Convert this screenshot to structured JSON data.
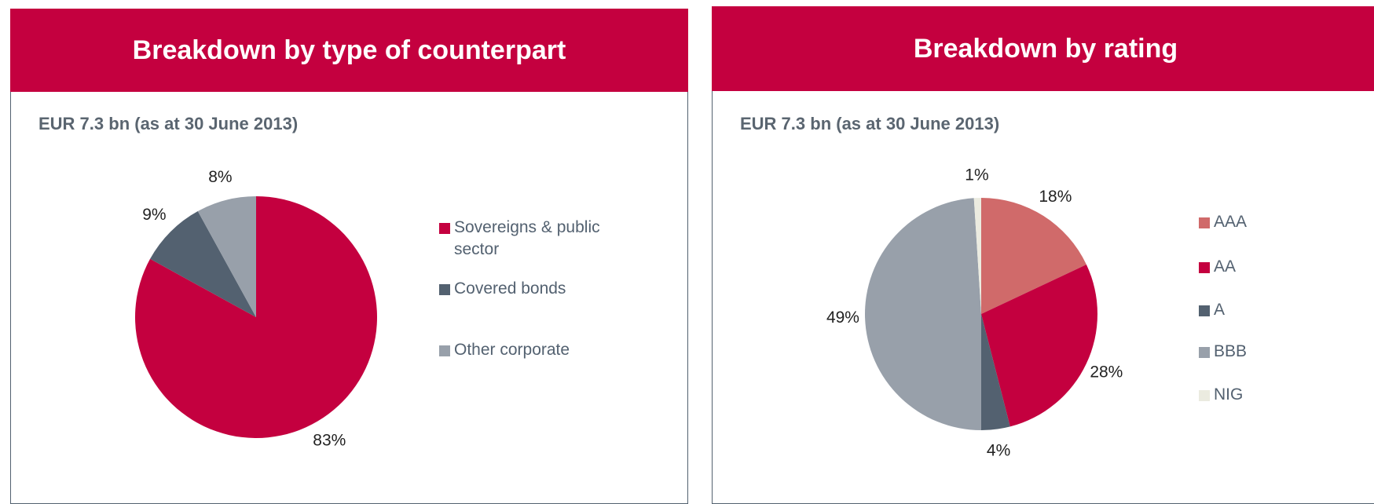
{
  "chart_data": [
    {
      "type": "pie",
      "title": "Breakdown by type of counterpart",
      "subtitle": "EUR 7.3  bn (as at 30 June 2013)",
      "categories": [
        "Sovereigns & public sector",
        "Covered bonds",
        "Other corporate"
      ],
      "values": [
        83,
        9,
        8
      ],
      "value_labels": [
        "83%",
        "9%",
        "8%"
      ],
      "colors": [
        "#c4003f",
        "#536170",
        "#98a0aa"
      ]
    },
    {
      "type": "pie",
      "title": "Breakdown by rating",
      "subtitle": "EUR 7.3  bn (as at 30 June 2013)",
      "categories": [
        "AAA",
        "AA",
        "A",
        "BBB",
        "NIG"
      ],
      "values": [
        18,
        28,
        4,
        49,
        1
      ],
      "value_labels": [
        "18%",
        "28%",
        "4%",
        "49%",
        "1%"
      ],
      "colors": [
        "#d06a6a",
        "#c4003f",
        "#536170",
        "#98a0aa",
        "#ebebe0"
      ]
    }
  ]
}
